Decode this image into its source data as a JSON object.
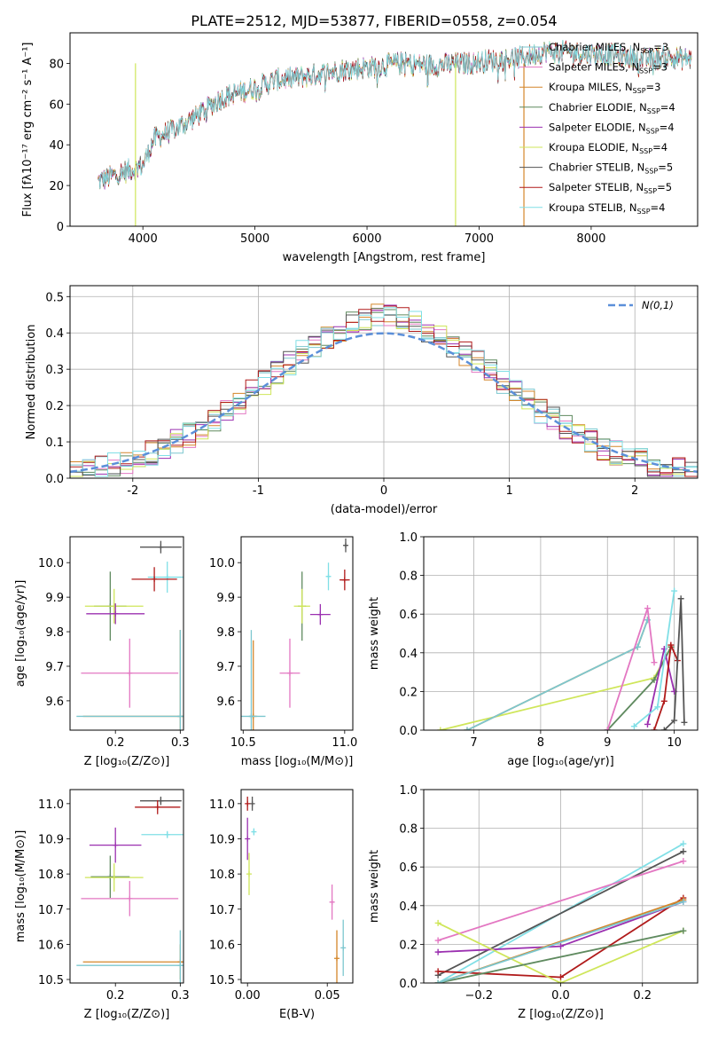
{
  "title": "PLATE=2512, MJD=53877, FIBERID=0558, z=0.054",
  "models": [
    {
      "key": "chabrier_miles",
      "label": "Chabrier MILES, N",
      "sub": "SSP",
      "suffix": "=3",
      "color": "#7cc7cf"
    },
    {
      "key": "salpeter_miles",
      "label": "Salpeter MILES, N",
      "sub": "SSP",
      "suffix": "=3",
      "color": "#e377c2"
    },
    {
      "key": "kroupa_miles",
      "label": "Kroupa MILES, N",
      "sub": "SSP",
      "suffix": "=3",
      "color": "#d4862a"
    },
    {
      "key": "chabrier_elodie",
      "label": "Chabrier ELODIE, N",
      "sub": "SSP",
      "suffix": "=4",
      "color": "#5f8a5f"
    },
    {
      "key": "salpeter_elodie",
      "label": "Salpeter ELODIE, N",
      "sub": "SSP",
      "suffix": "=4",
      "color": "#9b30b0"
    },
    {
      "key": "kroupa_elodie",
      "label": "Kroupa ELODIE, N",
      "sub": "SSP",
      "suffix": "=4",
      "color": "#cfe65a"
    },
    {
      "key": "chabrier_stelib",
      "label": "Chabrier STELIB, N",
      "sub": "SSP",
      "suffix": "=5",
      "color": "#555555"
    },
    {
      "key": "salpeter_stelib",
      "label": "Salpeter STELIB, N",
      "sub": "SSP",
      "suffix": "=5",
      "color": "#b01a1a"
    },
    {
      "key": "kroupa_stelib",
      "label": "Kroupa STELIB, N",
      "sub": "SSP",
      "suffix": "=4",
      "color": "#80dfe6"
    }
  ],
  "chart_data": [
    {
      "id": "spectrum",
      "type": "line",
      "xlabel": "wavelength [Angstrom, rest frame]",
      "ylabel": "Flux [fλ10⁻¹⁷ erg cm⁻² s⁻¹ A⁻¹]",
      "xlim": [
        3350,
        8950
      ],
      "ylim": [
        0,
        95
      ],
      "xticks": [
        4000,
        5000,
        6000,
        7000,
        8000
      ],
      "yticks": [
        0,
        20,
        40,
        60,
        80
      ],
      "envelope": {
        "x": [
          3600,
          3800,
          4000,
          4100,
          4300,
          4500,
          4700,
          5000,
          5200,
          5500,
          5800,
          6000,
          6300,
          6600,
          6900,
          7200,
          7400,
          7600,
          7900,
          8200,
          8500,
          8700,
          8900
        ],
        "y": [
          22,
          26,
          30,
          43,
          48,
          55,
          63,
          68,
          72,
          74,
          77,
          78,
          80,
          79,
          80,
          82,
          83,
          86,
          85,
          84,
          82,
          83,
          82
        ]
      },
      "dips": [
        {
          "x": 3934,
          "model": "kroupa_elodie"
        },
        {
          "x": 6790,
          "model": "kroupa_elodie"
        },
        {
          "x": 7400,
          "model": "kroupa_miles"
        }
      ],
      "legend_position": "upper right"
    },
    {
      "id": "residuals",
      "type": "histogram",
      "xlabel": "(data-model)/error",
      "ylabel": "Normed distribution",
      "xlim": [
        -2.5,
        2.5
      ],
      "ylim": [
        0,
        0.53
      ],
      "xticks": [
        -2,
        -1,
        0,
        1,
        2
      ],
      "yticks": [
        0.0,
        0.1,
        0.2,
        0.3,
        0.4,
        0.5
      ],
      "bin_width": 0.1,
      "reference": {
        "label": "N(0,1)",
        "mean": 0,
        "sd": 1
      },
      "grid": true,
      "legend_position": "upper right"
    },
    {
      "id": "age_vs_Z",
      "type": "scatter",
      "xlabel": "Z [log₁₀(Z/Z⊙)]",
      "ylabel": "age  [log₁₀(age/yr)]",
      "xlim": [
        0.13,
        0.305
      ],
      "ylim": [
        9.515,
        10.075
      ],
      "xticks": [
        0.2,
        0.3
      ],
      "xticklabels": [
        "0.2",
        "0.3"
      ],
      "yticks": [
        9.6,
        9.7,
        9.8,
        9.9,
        10.0
      ],
      "points": [
        {
          "model": "chabrier_stelib",
          "x": 0.27,
          "y": 10.045,
          "xerr": 0.032,
          "yerr": 0.018
        },
        {
          "model": "kroupa_stelib",
          "x": 0.28,
          "y": 9.958,
          "xerr": 0.03,
          "yerr": 0.045
        },
        {
          "model": "salpeter_stelib",
          "x": 0.26,
          "y": 9.952,
          "xerr": 0.035,
          "yerr": 0.035
        },
        {
          "model": "chabrier_elodie",
          "x": 0.192,
          "y": 9.874,
          "xerr": 0.025,
          "yerr": 0.1
        },
        {
          "model": "kroupa_elodie",
          "x": 0.198,
          "y": 9.874,
          "xerr": 0.045,
          "yerr": 0.05
        },
        {
          "model": "salpeter_elodie",
          "x": 0.2,
          "y": 9.852,
          "xerr": 0.045,
          "yerr": 0.03
        },
        {
          "model": "salpeter_miles",
          "x": 0.222,
          "y": 9.68,
          "xerr": 0.075,
          "yerr": 0.1
        },
        {
          "model": "kroupa_miles",
          "x": 0.3,
          "y": 9.555,
          "xerr": 0.15,
          "yerr": 0.25
        },
        {
          "model": "chabrier_miles",
          "x": 0.3,
          "y": 9.555,
          "xerr": 0.16,
          "yerr": 0.25
        }
      ]
    },
    {
      "id": "age_vs_mass",
      "type": "scatter",
      "xlabel": "mass [log₁₀(M/M⊙)]",
      "ylabel": "",
      "xlim": [
        10.49,
        11.04
      ],
      "ylim": [
        9.515,
        10.075
      ],
      "xticks": [
        10.5,
        11.0
      ],
      "xticklabels": [
        "10.5",
        "11.0"
      ],
      "yticks": [
        9.6,
        9.7,
        9.8,
        9.9,
        10.0
      ],
      "points": [
        {
          "model": "chabrier_stelib",
          "x": 11.005,
          "y": 10.05,
          "xerr": 0.01,
          "yerr": 0.02
        },
        {
          "model": "kroupa_stelib",
          "x": 10.92,
          "y": 9.96,
          "xerr": 0.01,
          "yerr": 0.04
        },
        {
          "model": "salpeter_stelib",
          "x": 11.0,
          "y": 9.95,
          "xerr": 0.025,
          "yerr": 0.03
        },
        {
          "model": "salpeter_elodie",
          "x": 10.88,
          "y": 9.85,
          "xerr": 0.05,
          "yerr": 0.03
        },
        {
          "model": "chabrier_elodie",
          "x": 10.79,
          "y": 9.874,
          "xerr": 0.02,
          "yerr": 0.1
        },
        {
          "model": "kroupa_elodie",
          "x": 10.79,
          "y": 9.874,
          "xerr": 0.04,
          "yerr": 0.05
        },
        {
          "model": "salpeter_miles",
          "x": 10.73,
          "y": 9.68,
          "xerr": 0.05,
          "yerr": 0.1
        },
        {
          "model": "kroupa_miles",
          "x": 10.55,
          "y": 9.555,
          "xerr": 0.02,
          "yerr": 0.22
        },
        {
          "model": "chabrier_miles",
          "x": 10.54,
          "y": 9.555,
          "xerr": 0.07,
          "yerr": 0.25
        }
      ]
    },
    {
      "id": "massweight_vs_age",
      "type": "line",
      "xlabel": "age  [log₁₀(age/yr)]",
      "ylabel": "mass weight",
      "xlim": [
        6.25,
        10.35
      ],
      "ylim": [
        0,
        1.0
      ],
      "xticks": [
        7,
        8,
        9,
        10
      ],
      "yticks": [
        0.0,
        0.2,
        0.4,
        0.6,
        0.8,
        1.0
      ],
      "grid": true,
      "series": [
        {
          "model": "kroupa_elodie",
          "x": [
            6.5,
            9.7,
            9.95
          ],
          "y": [
            0.0,
            0.27,
            0.43
          ]
        },
        {
          "model": "chabrier_elodie",
          "x": [
            9.0,
            9.7,
            9.95
          ],
          "y": [
            0.0,
            0.26,
            0.43
          ]
        },
        {
          "model": "kroupa_miles",
          "x": [
            6.9,
            9.45,
            9.6
          ],
          "y": [
            0.0,
            0.43,
            0.57
          ]
        },
        {
          "model": "chabrier_miles",
          "x": [
            6.9,
            9.45,
            9.6
          ],
          "y": [
            0.0,
            0.43,
            0.57
          ]
        },
        {
          "model": "salpeter_miles",
          "x": [
            9.0,
            9.6,
            9.7
          ],
          "y": [
            0.0,
            0.63,
            0.35
          ]
        },
        {
          "model": "salpeter_elodie",
          "x": [
            9.6,
            9.85,
            10.0
          ],
          "y": [
            0.03,
            0.42,
            0.2
          ]
        },
        {
          "model": "kroupa_stelib",
          "x": [
            9.4,
            9.75,
            10.0
          ],
          "y": [
            0.02,
            0.12,
            0.72
          ]
        },
        {
          "model": "salpeter_stelib",
          "x": [
            9.7,
            9.85,
            9.95,
            10.05
          ],
          "y": [
            0.0,
            0.15,
            0.44,
            0.36
          ]
        },
        {
          "model": "chabrier_stelib",
          "x": [
            9.85,
            10.0,
            10.1,
            10.15
          ],
          "y": [
            0.0,
            0.05,
            0.68,
            0.04
          ]
        }
      ]
    },
    {
      "id": "mass_vs_Z",
      "type": "scatter",
      "xlabel": "Z [log₁₀(Z/Z⊙)]",
      "ylabel": "mass [log₁₀(M/M⊙)]",
      "xlim": [
        0.13,
        0.305
      ],
      "ylim": [
        10.49,
        11.04
      ],
      "xticks": [
        0.2,
        0.3
      ],
      "xticklabels": [
        "0.2",
        "0.3"
      ],
      "yticks": [
        10.5,
        10.6,
        10.7,
        10.8,
        10.9,
        11.0
      ],
      "points": [
        {
          "model": "chabrier_stelib",
          "x": 0.27,
          "y": 11.008,
          "xerr": 0.032,
          "yerr": 0.012
        },
        {
          "model": "salpeter_stelib",
          "x": 0.265,
          "y": 10.99,
          "xerr": 0.035,
          "yerr": 0.02
        },
        {
          "model": "kroupa_stelib",
          "x": 0.28,
          "y": 10.912,
          "xerr": 0.04,
          "yerr": 0.01
        },
        {
          "model": "salpeter_elodie",
          "x": 0.2,
          "y": 10.882,
          "xerr": 0.04,
          "yerr": 0.05
        },
        {
          "model": "chabrier_elodie",
          "x": 0.192,
          "y": 10.792,
          "xerr": 0.03,
          "yerr": 0.06
        },
        {
          "model": "kroupa_elodie",
          "x": 0.198,
          "y": 10.79,
          "xerr": 0.045,
          "yerr": 0.04
        },
        {
          "model": "salpeter_miles",
          "x": 0.222,
          "y": 10.73,
          "xerr": 0.075,
          "yerr": 0.05
        },
        {
          "model": "kroupa_miles",
          "x": 0.3,
          "y": 10.55,
          "xerr": 0.15,
          "yerr": 0.05
        },
        {
          "model": "chabrier_miles",
          "x": 0.3,
          "y": 10.54,
          "xerr": 0.16,
          "yerr": 0.1
        }
      ]
    },
    {
      "id": "mass_vs_EBV",
      "type": "scatter",
      "xlabel": "E(B-V)",
      "ylabel": "",
      "xlim": [
        -0.004,
        0.066
      ],
      "ylim": [
        10.49,
        11.04
      ],
      "xticks": [
        0.0,
        0.05
      ],
      "xticklabels": [
        "0.00",
        "0.05"
      ],
      "yticks": [
        10.5,
        10.6,
        10.7,
        10.8,
        10.9,
        11.0
      ],
      "points": [
        {
          "model": "chabrier_stelib",
          "x": 0.003,
          "y": 11.0,
          "xerr": 0.0,
          "yerr": 0.02
        },
        {
          "model": "salpeter_stelib",
          "x": 0.0,
          "y": 11.0,
          "xerr": 0.0,
          "yerr": 0.02
        },
        {
          "model": "kroupa_stelib",
          "x": 0.004,
          "y": 10.92,
          "xerr": 0.0,
          "yerr": 0.01
        },
        {
          "model": "salpeter_elodie",
          "x": 0.0,
          "y": 10.9,
          "xerr": 0.0,
          "yerr": 0.06
        },
        {
          "model": "kroupa_elodie",
          "x": 0.001,
          "y": 10.8,
          "xerr": 0.0,
          "yerr": 0.06
        },
        {
          "model": "salpeter_miles",
          "x": 0.053,
          "y": 10.72,
          "xerr": 0.0,
          "yerr": 0.05
        },
        {
          "model": "kroupa_miles",
          "x": 0.056,
          "y": 10.56,
          "xerr": 0.0,
          "yerr": 0.08
        },
        {
          "model": "chabrier_miles",
          "x": 0.06,
          "y": 10.59,
          "xerr": 0.0,
          "yerr": 0.08
        }
      ]
    },
    {
      "id": "massweight_vs_Z",
      "type": "line",
      "xlabel": "Z [log₁₀(Z/Z⊙)]",
      "ylabel": "mass weight",
      "xlim": [
        -0.335,
        0.335
      ],
      "ylim": [
        0,
        1.0
      ],
      "xticks": [
        -0.2,
        0.0,
        0.2
      ],
      "xticklabels": [
        "−0.2",
        "0.0",
        "0.2"
      ],
      "yticks": [
        0.0,
        0.2,
        0.4,
        0.6,
        0.8,
        1.0
      ],
      "grid": true,
      "series": [
        {
          "model": "kroupa_stelib",
          "x": [
            -0.3,
            0.3
          ],
          "y": [
            0.0,
            0.72
          ]
        },
        {
          "model": "chabrier_stelib",
          "x": [
            -0.3,
            0.3
          ],
          "y": [
            0.04,
            0.68
          ]
        },
        {
          "model": "salpeter_miles",
          "x": [
            -0.3,
            0.3
          ],
          "y": [
            0.22,
            0.63
          ]
        },
        {
          "model": "salpeter_elodie",
          "x": [
            -0.3,
            0.0,
            0.3
          ],
          "y": [
            0.16,
            0.19,
            0.42
          ]
        },
        {
          "model": "salpeter_stelib",
          "x": [
            -0.3,
            0.0,
            0.3
          ],
          "y": [
            0.06,
            0.03,
            0.44
          ]
        },
        {
          "model": "kroupa_elodie",
          "x": [
            -0.3,
            0.0,
            0.3
          ],
          "y": [
            0.31,
            0.0,
            0.27
          ]
        },
        {
          "model": "chabrier_elodie",
          "x": [
            -0.3,
            0.3
          ],
          "y": [
            0.0,
            0.27
          ]
        },
        {
          "model": "kroupa_miles",
          "x": [
            -0.3,
            0.3
          ],
          "y": [
            0.0,
            0.43
          ]
        },
        {
          "model": "chabrier_miles",
          "x": [
            -0.3,
            0.3
          ],
          "y": [
            0.0,
            0.42
          ]
        }
      ]
    }
  ]
}
